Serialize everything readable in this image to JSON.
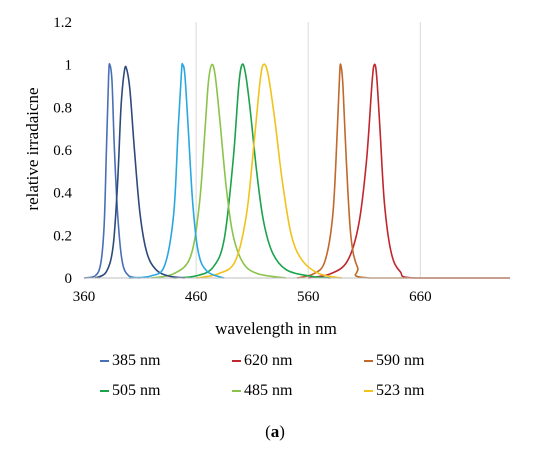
{
  "chart_data": {
    "type": "line",
    "xlabel": "wavelength in nm",
    "ylabel": "relative irradaicne",
    "xlim": [
      360,
      740
    ],
    "ylim": [
      0,
      1.2
    ],
    "x_ticks": [
      360,
      460,
      560,
      660
    ],
    "y_ticks": [
      0,
      0.2,
      0.4,
      0.6,
      0.8,
      1,
      1.2
    ],
    "y_tick_labels": [
      "0",
      "0.2",
      "0.4",
      "0.6",
      "0.8",
      "1",
      "1.2"
    ],
    "grid": "vertical",
    "legend_position": "bottom",
    "series": [
      {
        "name": "385 nm",
        "color": "#4a6fb5",
        "points": [
          [
            360,
            0
          ],
          [
            370,
            0.01
          ],
          [
            375,
            0.07
          ],
          [
            378,
            0.25
          ],
          [
            380,
            0.6
          ],
          [
            382,
            0.95
          ],
          [
            383,
            1.0
          ],
          [
            385,
            0.92
          ],
          [
            387,
            0.62
          ],
          [
            390,
            0.3
          ],
          [
            394,
            0.08
          ],
          [
            400,
            0.01
          ],
          [
            410,
            0
          ]
        ]
      },
      {
        "name": "620 nm",
        "color": "#c0272d",
        "points": [
          [
            560,
            0
          ],
          [
            580,
            0.02
          ],
          [
            595,
            0.08
          ],
          [
            605,
            0.25
          ],
          [
            612,
            0.55
          ],
          [
            617,
            0.92
          ],
          [
            619,
            1.0
          ],
          [
            621,
            0.95
          ],
          [
            624,
            0.7
          ],
          [
            628,
            0.35
          ],
          [
            634,
            0.12
          ],
          [
            642,
            0.03
          ],
          [
            655,
            0
          ],
          [
            740,
            0
          ]
        ]
      },
      {
        "name": "590 nm",
        "color": "#c0692a",
        "points": [
          [
            550,
            0
          ],
          [
            565,
            0.02
          ],
          [
            575,
            0.08
          ],
          [
            582,
            0.3
          ],
          [
            586,
            0.7
          ],
          [
            588,
            0.95
          ],
          [
            589,
            1.0
          ],
          [
            591,
            0.9
          ],
          [
            594,
            0.55
          ],
          [
            598,
            0.2
          ],
          [
            604,
            0.05
          ],
          [
            615,
            0
          ],
          [
            740,
            0
          ]
        ]
      },
      {
        "name": "505 nm",
        "color": "#1aa34a",
        "points": [
          [
            440,
            0
          ],
          [
            460,
            0.01
          ],
          [
            475,
            0.05
          ],
          [
            485,
            0.18
          ],
          [
            493,
            0.55
          ],
          [
            498,
            0.9
          ],
          [
            501,
            1.0
          ],
          [
            504,
            0.96
          ],
          [
            508,
            0.8
          ],
          [
            514,
            0.5
          ],
          [
            520,
            0.27
          ],
          [
            528,
            0.12
          ],
          [
            540,
            0.04
          ],
          [
            560,
            0.01
          ],
          [
            580,
            0
          ]
        ]
      },
      {
        "name": "485 nm",
        "color": "#8bc34a",
        "points": [
          [
            420,
            0
          ],
          [
            440,
            0.02
          ],
          [
            455,
            0.1
          ],
          [
            463,
            0.35
          ],
          [
            468,
            0.7
          ],
          [
            471,
            0.92
          ],
          [
            474,
            1.0
          ],
          [
            477,
            0.95
          ],
          [
            481,
            0.75
          ],
          [
            487,
            0.42
          ],
          [
            493,
            0.2
          ],
          [
            502,
            0.07
          ],
          [
            515,
            0.02
          ],
          [
            540,
            0
          ]
        ]
      },
      {
        "name": "523 nm",
        "color": "#f1c21b",
        "points": [
          [
            460,
            0
          ],
          [
            480,
            0.02
          ],
          [
            495,
            0.08
          ],
          [
            505,
            0.3
          ],
          [
            512,
            0.65
          ],
          [
            517,
            0.92
          ],
          [
            520,
            1.0
          ],
          [
            524,
            0.96
          ],
          [
            530,
            0.75
          ],
          [
            537,
            0.45
          ],
          [
            545,
            0.2
          ],
          [
            555,
            0.08
          ],
          [
            570,
            0.02
          ],
          [
            590,
            0
          ]
        ]
      },
      {
        "name": "",
        "color": "#2e4a7a",
        "points": [
          [
            370,
            0
          ],
          [
            380,
            0.03
          ],
          [
            386,
            0.15
          ],
          [
            390,
            0.45
          ],
          [
            393,
            0.8
          ],
          [
            396,
            0.97
          ],
          [
            398,
            0.98
          ],
          [
            401,
            0.88
          ],
          [
            405,
            0.6
          ],
          [
            410,
            0.3
          ],
          [
            416,
            0.12
          ],
          [
            424,
            0.04
          ],
          [
            435,
            0.01
          ],
          [
            450,
            0
          ]
        ]
      },
      {
        "name": "",
        "color": "#29a8e0",
        "points": [
          [
            400,
            0
          ],
          [
            420,
            0.01
          ],
          [
            432,
            0.06
          ],
          [
            440,
            0.3
          ],
          [
            444,
            0.7
          ],
          [
            447,
            0.97
          ],
          [
            448,
            1.0
          ],
          [
            450,
            0.95
          ],
          [
            453,
            0.7
          ],
          [
            457,
            0.35
          ],
          [
            462,
            0.12
          ],
          [
            470,
            0.03
          ],
          [
            485,
            0
          ]
        ]
      }
    ]
  },
  "legend": {
    "row1": [
      "385 nm",
      "620 nm",
      "590 nm"
    ],
    "row2": [
      "505 nm",
      "485 nm",
      "523 nm"
    ],
    "row1_colors": [
      "#4a6fb5",
      "#c0272d",
      "#c0692a"
    ],
    "row2_colors": [
      "#1aa34a",
      "#8bc34a",
      "#f1c21b"
    ]
  },
  "caption": {
    "prefix": "(",
    "letter": "a",
    "suffix": ")"
  }
}
